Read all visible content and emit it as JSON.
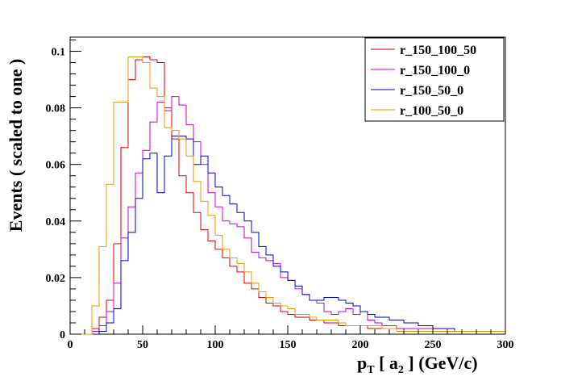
{
  "chart_data": {
    "type": "line",
    "style": "step-histogram",
    "title": "",
    "xlabel_parts": {
      "p": "p",
      "T": "T",
      "bracket_open": " [ a",
      "sub2": "2",
      "rest": " ] (GeV/c)"
    },
    "ylabel": "Events  ( scaled to one )",
    "xlim": [
      0,
      300
    ],
    "ylim": [
      0,
      0.105
    ],
    "x_ticks": [
      0,
      50,
      100,
      150,
      200,
      250,
      300
    ],
    "x_tick_labels": [
      "0",
      "50",
      "100",
      "150",
      "200",
      "250",
      "300"
    ],
    "y_ticks": [
      0,
      0.02,
      0.04,
      0.06,
      0.08,
      0.1
    ],
    "y_tick_labels": [
      "0",
      "0.02",
      "0.04",
      "0.06",
      "0.08",
      "0.1"
    ],
    "bin_width": 5,
    "legend_position": "top-right",
    "series": [
      {
        "name": "r_150_100_50",
        "color": "#dd0000",
        "values": [
          0.0,
          0.0,
          0.0,
          0.002,
          0.006,
          0.012,
          0.032,
          0.066,
          0.09,
          0.097,
          0.098,
          0.097,
          0.096,
          0.08,
          0.069,
          0.056,
          0.05,
          0.043,
          0.037,
          0.033,
          0.03,
          0.027,
          0.024,
          0.022,
          0.018,
          0.016,
          0.013,
          0.011,
          0.01,
          0.008,
          0.007,
          0.006,
          0.006,
          0.005,
          0.005,
          0.004,
          0.004,
          0.003,
          0.003,
          0.003,
          0.003,
          0.002,
          0.002,
          0.002,
          0.002,
          0.002,
          0.001,
          0.001,
          0.001,
          0.001,
          0.001,
          0.001,
          0.001,
          0.001,
          0.001,
          0.001,
          0.001,
          0.001,
          0.001,
          0.001
        ]
      },
      {
        "name": "r_150_100_0",
        "color": "#cc00cc",
        "values": [
          0.0,
          0.0,
          0.0,
          0.001,
          0.003,
          0.008,
          0.018,
          0.034,
          0.045,
          0.057,
          0.065,
          0.075,
          0.082,
          0.079,
          0.084,
          0.081,
          0.074,
          0.068,
          0.06,
          0.05,
          0.045,
          0.04,
          0.039,
          0.038,
          0.034,
          0.029,
          0.027,
          0.026,
          0.025,
          0.02,
          0.019,
          0.016,
          0.014,
          0.012,
          0.011,
          0.008,
          0.007,
          0.008,
          0.009,
          0.007,
          0.008,
          0.005,
          0.004,
          0.003,
          0.003,
          0.002,
          0.002,
          0.002,
          0.002,
          0.002,
          0.001,
          0.001,
          0.001,
          0.001,
          0.001,
          0.001,
          0.001,
          0.001,
          0.001,
          0.001
        ]
      },
      {
        "name": "r_150_50_0",
        "color": "#0000cc",
        "values": [
          0.0,
          0.0,
          0.0,
          0.0,
          0.001,
          0.004,
          0.009,
          0.026,
          0.036,
          0.048,
          0.062,
          0.064,
          0.05,
          0.063,
          0.07,
          0.07,
          0.069,
          0.06,
          0.063,
          0.057,
          0.052,
          0.049,
          0.046,
          0.043,
          0.04,
          0.036,
          0.031,
          0.028,
          0.024,
          0.022,
          0.019,
          0.017,
          0.014,
          0.012,
          0.012,
          0.013,
          0.013,
          0.012,
          0.011,
          0.01,
          0.008,
          0.007,
          0.006,
          0.006,
          0.005,
          0.005,
          0.004,
          0.004,
          0.003,
          0.003,
          0.002,
          0.002,
          0.002,
          0.001,
          0.001,
          0.001,
          0.001,
          0.001,
          0.001,
          0.001
        ]
      },
      {
        "name": "r_100_50_0",
        "color": "#ee9900",
        "values": [
          0.0,
          0.0,
          0.0,
          0.01,
          0.031,
          0.053,
          0.082,
          0.082,
          0.098,
          0.098,
          0.096,
          0.087,
          0.084,
          0.073,
          0.072,
          0.069,
          0.063,
          0.054,
          0.047,
          0.042,
          0.035,
          0.03,
          0.027,
          0.025,
          0.022,
          0.018,
          0.015,
          0.013,
          0.011,
          0.01,
          0.009,
          0.007,
          0.007,
          0.006,
          0.005,
          0.005,
          0.005,
          0.004,
          0.003,
          0.003,
          0.003,
          0.003,
          0.003,
          0.002,
          0.002,
          0.001,
          0.001,
          0.001,
          0.001,
          0.001,
          0.001,
          0.001,
          0.001,
          0.001,
          0.001,
          0.001,
          0.001,
          0.001,
          0.001,
          0.001
        ]
      }
    ]
  }
}
